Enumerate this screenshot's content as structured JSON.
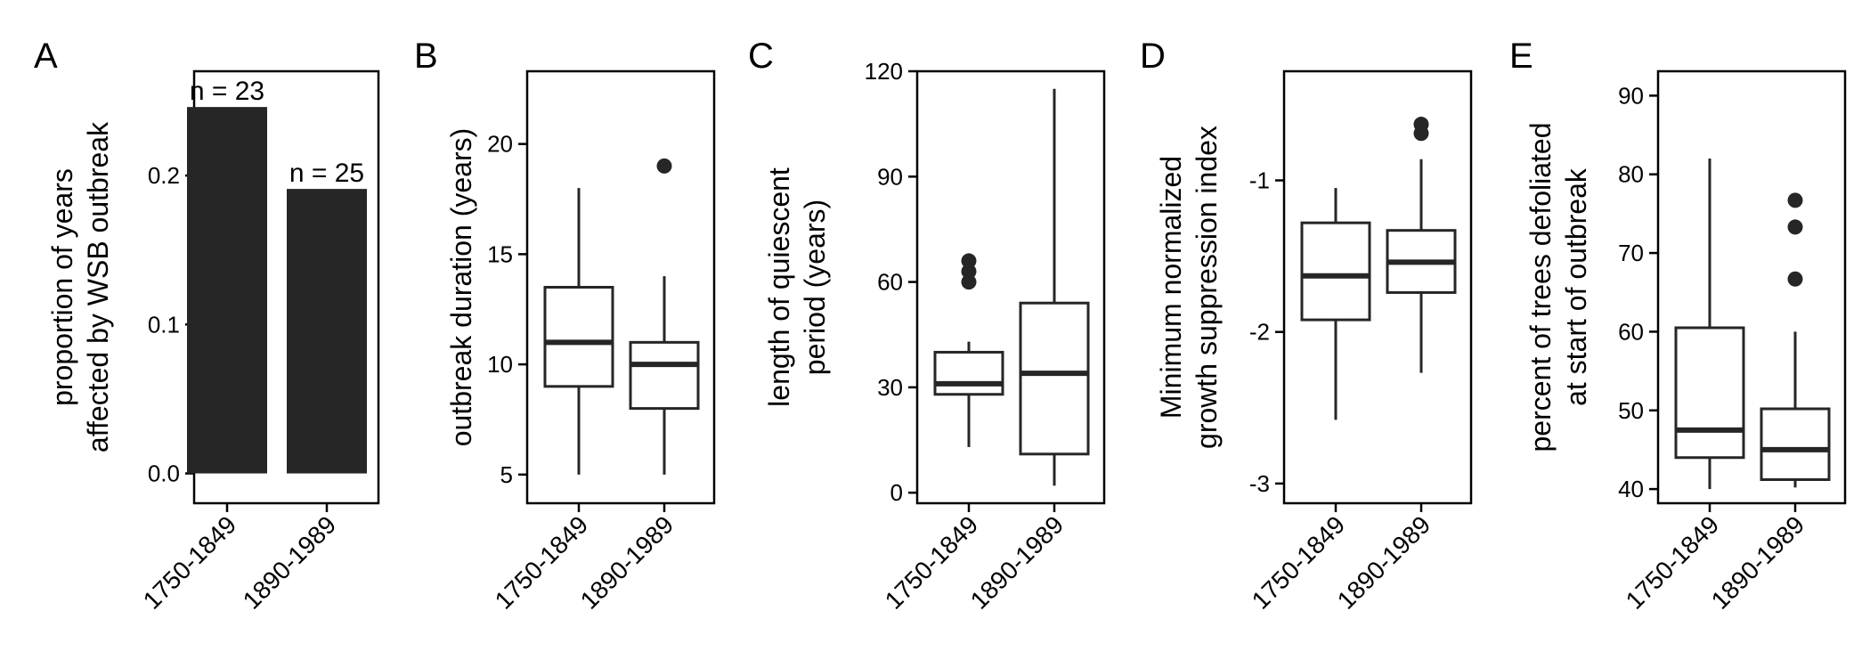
{
  "chart_data": [
    {
      "panel": "A",
      "type": "bar",
      "categories": [
        "1750-1849",
        "1890-1989"
      ],
      "values": [
        0.246,
        0.191
      ],
      "bar_labels": [
        "n = 23",
        "n = 25"
      ],
      "ylabel": [
        "proportion of years",
        "affected by WSB outbreak"
      ],
      "ylim": [
        -0.02,
        0.27
      ],
      "yticks": [
        0.0,
        0.1,
        0.2
      ],
      "ytick_labels": [
        "0.0",
        "0.1",
        "0.2"
      ]
    },
    {
      "panel": "B",
      "type": "box",
      "categories": [
        "1750-1849",
        "1890-1989"
      ],
      "boxes": [
        {
          "min": 5,
          "q1": 9,
          "median": 11,
          "q3": 13.5,
          "max": 18,
          "outliers": []
        },
        {
          "min": 5,
          "q1": 8,
          "median": 10,
          "q3": 11,
          "max": 14,
          "outliers": [
            19
          ]
        }
      ],
      "ylabel": [
        "outbreak duration (years)"
      ],
      "ylim": [
        3.7,
        23.3
      ],
      "yticks": [
        5,
        10,
        15,
        20
      ],
      "ytick_labels": [
        "5",
        "10",
        "15",
        "20"
      ]
    },
    {
      "panel": "C",
      "type": "box",
      "categories": [
        "1750-1849",
        "1890-1989"
      ],
      "boxes": [
        {
          "min": 13,
          "q1": 28,
          "median": 31,
          "q3": 40,
          "max": 43,
          "outliers": [
            60,
            63,
            66
          ]
        },
        {
          "min": 2,
          "q1": 11,
          "median": 34,
          "q3": 54,
          "max": 115,
          "outliers": []
        }
      ],
      "ylabel": [
        "length of quiescent",
        "period (years)"
      ],
      "ylim": [
        -3,
        120
      ],
      "yticks": [
        0,
        30,
        60,
        90,
        120
      ],
      "ytick_labels": [
        "0",
        "30",
        "60",
        "90",
        "120"
      ]
    },
    {
      "panel": "D",
      "type": "box",
      "categories": [
        "1750-1849",
        "1890-1989"
      ],
      "boxes": [
        {
          "min": -2.58,
          "q1": -1.92,
          "median": -1.63,
          "q3": -1.28,
          "max": -1.05,
          "outliers": []
        },
        {
          "min": -2.27,
          "q1": -1.74,
          "median": -1.54,
          "q3": -1.33,
          "max": -0.86,
          "outliers": [
            -0.69,
            -0.63
          ]
        }
      ],
      "ylabel": [
        "Minimum normalized",
        "growth suppression index"
      ],
      "ylim": [
        -3.13,
        -0.28
      ],
      "yticks": [
        -3,
        -2,
        -1
      ],
      "ytick_labels": [
        "-3",
        "-2",
        "-1"
      ]
    },
    {
      "panel": "E",
      "type": "box",
      "categories": [
        "1750-1849",
        "1890-1989"
      ],
      "boxes": [
        {
          "min": 40,
          "q1": 44,
          "median": 47.5,
          "q3": 60.5,
          "max": 82,
          "outliers": []
        },
        {
          "min": 40.2,
          "q1": 41.2,
          "median": 45,
          "q3": 50.2,
          "max": 60,
          "outliers": [
            66.7,
            73.3,
            76.7
          ]
        }
      ],
      "ylabel": [
        "percent of trees defoliated",
        "at start of outbreak"
      ],
      "ylim": [
        38.2,
        93.1
      ],
      "yticks": [
        40,
        50,
        60,
        70,
        80,
        90
      ],
      "ytick_labels": [
        "40",
        "50",
        "60",
        "70",
        "80",
        "90"
      ]
    }
  ]
}
